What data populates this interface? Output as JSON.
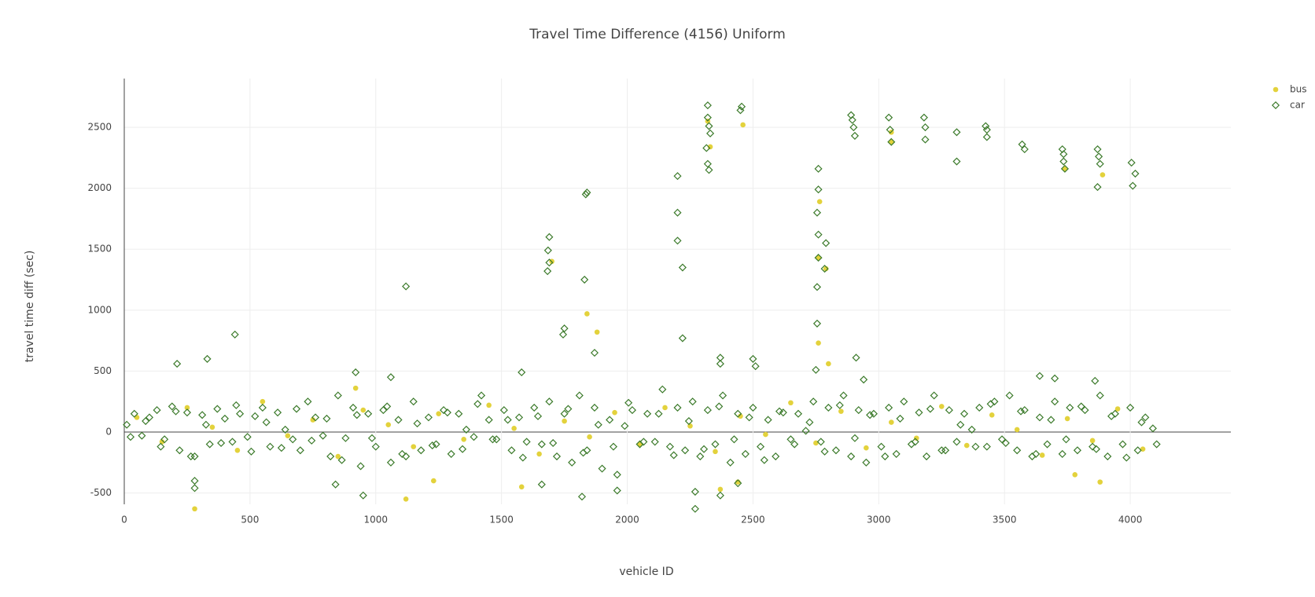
{
  "chart_data": {
    "type": "scatter",
    "title": "Travel Time Difference (4156) Uniform",
    "x_label": "vehicle ID",
    "y_label": "travel time diff (sec)",
    "xlim": [
      0,
      4400
    ],
    "ylim": [
      -870,
      2900
    ],
    "xticks": [
      0,
      500,
      1000,
      1500,
      2000,
      2500,
      3000,
      3500,
      4000
    ],
    "yticks": [
      -500,
      0,
      500,
      1000,
      1500,
      2000,
      2500
    ],
    "grid": true,
    "legend": "top-right",
    "series": [
      {
        "name": "bus",
        "color": "#e3d23c",
        "marker": "circle",
        "x": [
          280,
          1120,
          1230,
          1580,
          1840,
          1880,
          2320,
          2330,
          2460,
          2765,
          2760,
          2760,
          2800,
          2790,
          3050,
          3050,
          3780,
          3880,
          3890,
          3740,
          2370,
          2440,
          920,
          1700,
          50,
          150,
          250,
          350,
          450,
          550,
          650,
          750,
          850,
          950,
          1050,
          1150,
          1250,
          1350,
          1450,
          1550,
          1650,
          1750,
          1850,
          1950,
          2050,
          2150,
          2250,
          2350,
          2450,
          2550,
          2650,
          2750,
          2850,
          2950,
          3050,
          3150,
          3250,
          3350,
          3450,
          3550,
          3650,
          3750,
          3850,
          3950,
          4050
        ],
        "values": [
          -630,
          -550,
          -400,
          -450,
          970,
          820,
          2550,
          2340,
          2520,
          1890,
          1430,
          730,
          560,
          1340,
          2460,
          2380,
          -350,
          -410,
          2110,
          2160,
          -470,
          -410,
          360,
          1400,
          120,
          -80,
          200,
          40,
          -150,
          250,
          -30,
          100,
          -200,
          180,
          60,
          -120,
          150,
          -60,
          220,
          30,
          -180,
          90,
          -40,
          160,
          -100,
          200,
          50,
          -160,
          130,
          -20,
          240,
          -90,
          170,
          -130,
          80,
          -50,
          210,
          -110,
          140,
          20,
          -190,
          110,
          -70,
          190,
          -140
        ]
      },
      {
        "name": "car",
        "color": "#3b7a2a",
        "marker": "diamond-open",
        "x": [
          440,
          330,
          210,
          1120,
          1690,
          1685,
          1683,
          1690,
          1830,
          1835,
          1840,
          1820,
          1750,
          1745,
          1870,
          2200,
          2200,
          2200,
          2220,
          2220,
          2320,
          2320,
          2325,
          2330,
          2315,
          2320,
          2325,
          2450,
          2455,
          2270,
          2270,
          2370,
          2370,
          2760,
          2760,
          2755,
          2760,
          2760,
          2755,
          2755,
          2790,
          2785,
          2750,
          2890,
          2895,
          2900,
          2905,
          2910,
          3040,
          3045,
          3050,
          3180,
          3185,
          3185,
          3310,
          3310,
          3425,
          3430,
          3430,
          3570,
          3580,
          3730,
          3735,
          3735,
          3740,
          3870,
          3875,
          3880,
          3870,
          4005,
          4020,
          4010,
          950,
          280,
          280,
          840,
          1960,
          2370,
          2440,
          1660,
          920,
          1060,
          1580,
          3640,
          3700,
          3860,
          2500,
          2510,
          2940,
          10,
          40,
          70,
          100,
          130,
          160,
          190,
          220,
          250,
          280,
          310,
          340,
          370,
          400,
          430,
          460,
          490,
          520,
          550,
          580,
          610,
          640,
          670,
          700,
          730,
          760,
          790,
          820,
          850,
          880,
          910,
          940,
          970,
          1000,
          1030,
          1060,
          1090,
          1120,
          1150,
          1180,
          1210,
          1240,
          1270,
          1300,
          1330,
          1360,
          1390,
          1420,
          1450,
          1480,
          1510,
          1540,
          1570,
          1600,
          1630,
          1660,
          1690,
          1720,
          1750,
          1780,
          1810,
          1840,
          1870,
          1900,
          1930,
          1960,
          1990,
          2020,
          2050,
          2080,
          2110,
          2140,
          2170,
          2200,
          2230,
          2260,
          2290,
          2320,
          2350,
          2380,
          2410,
          2440,
          2470,
          2500,
          2530,
          2560,
          2590,
          2620,
          2650,
          2680,
          2710,
          2740,
          2770,
          2800,
          2830,
          2860,
          2890,
          2920,
          2950,
          2980,
          3010,
          3040,
          3070,
          3100,
          3130,
          3160,
          3190,
          3220,
          3250,
          3280,
          3310,
          3340,
          3370,
          3400,
          3430,
          3460,
          3490,
          3520,
          3550,
          3580,
          3610,
          3640,
          3670,
          3700,
          3730,
          3760,
          3790,
          3820,
          3850,
          3880,
          3910,
          3940,
          3970,
          4000,
          4030,
          4060,
          4090,
          25,
          85,
          145,
          205,
          265,
          325,
          385,
          445,
          505,
          565,
          625,
          685,
          745,
          805,
          865,
          925,
          985,
          1045,
          1105,
          1165,
          1225,
          1285,
          1345,
          1405,
          1465,
          1525,
          1585,
          1645,
          1705,
          1765,
          1825,
          1885,
          1945,
          2005,
          2065,
          2125,
          2185,
          2245,
          2305,
          2365,
          2425,
          2485,
          2545,
          2605,
          2665,
          2725,
          2785,
          2845,
          2905,
          2965,
          3025,
          3085,
          3145,
          3205,
          3265,
          3325,
          3385,
          3445,
          3505,
          3565,
          3625,
          3685,
          3745,
          3805,
          3865,
          3925,
          3985,
          4045,
          4105
        ],
        "values": [
          800,
          600,
          560,
          1195,
          1600,
          1490,
          1320,
          1390,
          1250,
          1950,
          1965,
          -530,
          850,
          800,
          650,
          2100,
          1800,
          1570,
          1350,
          770,
          2680,
          2580,
          2510,
          2450,
          2330,
          2200,
          2150,
          2640,
          2670,
          -630,
          -490,
          610,
          560,
          2160,
          1990,
          1800,
          1620,
          1430,
          1190,
          890,
          1550,
          1340,
          510,
          2600,
          2560,
          2500,
          2430,
          610,
          2580,
          2480,
          2380,
          2580,
          2500,
          2400,
          2460,
          2220,
          2510,
          2480,
          2420,
          2360,
          2320,
          2320,
          2280,
          2220,
          2160,
          2320,
          2260,
          2200,
          2010,
          2210,
          2120,
          2020,
          -520,
          -400,
          -460,
          -430,
          -480,
          -520,
          -420,
          -430,
          490,
          450,
          490,
          460,
          440,
          420,
          600,
          540,
          430,
          60,
          150,
          -30,
          120,
          180,
          -60,
          210,
          -150,
          160,
          -200,
          140,
          -100,
          190,
          110,
          -80,
          150,
          -40,
          130,
          200,
          -120,
          160,
          20,
          -60,
          -150,
          250,
          120,
          -30,
          -200,
          300,
          -50,
          200,
          -280,
          150,
          -120,
          180,
          -250,
          100,
          -200,
          250,
          -150,
          120,
          -100,
          180,
          -180,
          150,
          20,
          -40,
          300,
          100,
          -60,
          180,
          -150,
          120,
          -80,
          200,
          -100,
          250,
          -200,
          150,
          -250,
          300,
          -150,
          200,
          -300,
          100,
          -350,
          50,
          180,
          -100,
          150,
          -80,
          350,
          -120,
          200,
          -150,
          250,
          -200,
          180,
          -100,
          300,
          -250,
          150,
          -180,
          200,
          -120,
          100,
          -200,
          160,
          -60,
          150,
          10,
          250,
          -80,
          200,
          -150,
          300,
          -200,
          180,
          -250,
          150,
          -120,
          200,
          -180,
          250,
          -100,
          160,
          -200,
          300,
          -150,
          180,
          -80,
          150,
          20,
          200,
          -120,
          250,
          -60,
          300,
          -150,
          180,
          -200,
          120,
          -100,
          250,
          -180,
          200,
          -150,
          180,
          -120,
          300,
          -200,
          150,
          -100,
          200,
          -150,
          120,
          30,
          -40,
          90,
          -120,
          170,
          -200,
          60,
          -90,
          220,
          -160,
          80,
          -130,
          190,
          -70,
          110,
          -230,
          140,
          -50,
          210,
          -180,
          70,
          -110,
          160,
          -140,
          230,
          -60,
          100,
          -210,
          130,
          -90,
          190,
          -170,
          60,
          -120,
          240,
          -80,
          150,
          -190,
          90,
          -140,
          210,
          -60,
          120,
          -230,
          170,
          -100,
          80,
          -160,
          220,
          -50,
          140,
          -200,
          110,
          -80,
          190,
          -150,
          60,
          -120,
          230,
          -90,
          170,
          -180,
          100,
          -60,
          210,
          -140,
          130,
          -210,
          80,
          -100
        ]
      }
    ]
  }
}
